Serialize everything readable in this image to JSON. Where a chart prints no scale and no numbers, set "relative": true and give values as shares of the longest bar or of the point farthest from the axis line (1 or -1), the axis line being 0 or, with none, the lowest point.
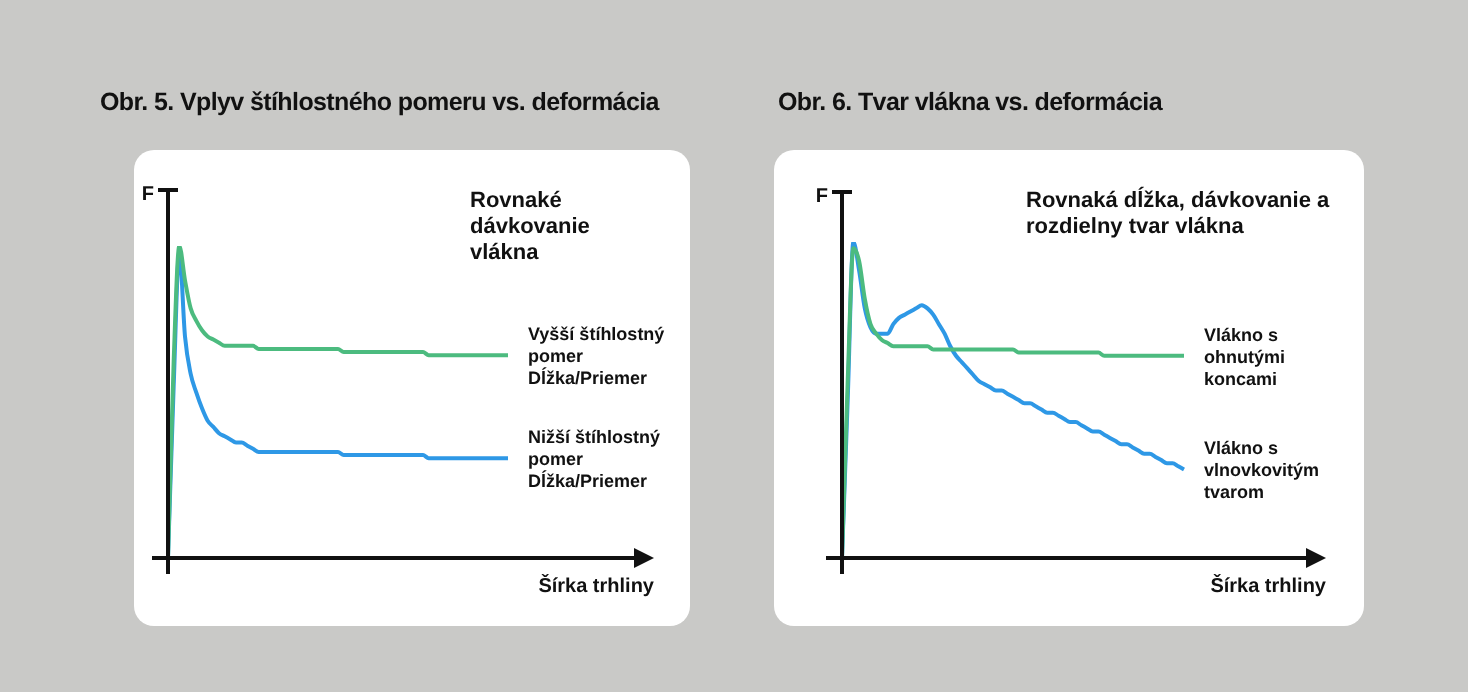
{
  "chart_data": [
    {
      "type": "line",
      "title": "Obr. 5. Vplyv štíhlostného pomeru vs. deformácia",
      "xlabel": "Šírka trhliny",
      "ylabel": "F",
      "relative": true,
      "legend": false,
      "marker": "none",
      "line_style": "solid",
      "annotations": [
        "Rovnaké dávkovanie vlákna"
      ],
      "categories": [
        null,
        null,
        null,
        null,
        null,
        null,
        null,
        null,
        null,
        null,
        null,
        null,
        null,
        null,
        null,
        null,
        null,
        null,
        null,
        null,
        null,
        null,
        null,
        null,
        null,
        null,
        null,
        null,
        null,
        null,
        null,
        null,
        null,
        null,
        null,
        null,
        null,
        null,
        null,
        null,
        null,
        null,
        null,
        null,
        null,
        null,
        null,
        null,
        null,
        null,
        null,
        null,
        null,
        null,
        null,
        null,
        null,
        null,
        null,
        null,
        null
      ],
      "series": [
        {
          "name": "Vyšší štíhlostný pomer Dĺžka/Priemer",
          "color": "#4cbb7f",
          "values": [
            0,
            0.63,
            1,
            0.89,
            0.8,
            0.76,
            0.73,
            0.71,
            0.7,
            0.69,
            0.68,
            0.68,
            0.68,
            0.68,
            0.68,
            0.68,
            0.67,
            0.67,
            0.67,
            0.67,
            0.67,
            0.67,
            0.67,
            0.67,
            0.67,
            0.67,
            0.67,
            0.67,
            0.67,
            0.67,
            0.67,
            0.66,
            0.66,
            0.66,
            0.66,
            0.66,
            0.66,
            0.66,
            0.66,
            0.66,
            0.66,
            0.66,
            0.66,
            0.66,
            0.66,
            0.66,
            0.65,
            0.65,
            0.65,
            0.65,
            0.65,
            0.65,
            0.65,
            0.65,
            0.65,
            0.65,
            0.65,
            0.65,
            0.65,
            0.65,
            0.65
          ]
        },
        {
          "name": "Nižší štíhlostný pomer Dĺžka/Priemer",
          "color": "#2e98e6",
          "values": [
            0,
            0.55,
            0.98,
            0.71,
            0.59,
            0.53,
            0.48,
            0.44,
            0.42,
            0.4,
            0.39,
            0.38,
            0.37,
            0.37,
            0.36,
            0.35,
            0.34,
            0.34,
            0.34,
            0.34,
            0.34,
            0.34,
            0.34,
            0.34,
            0.34,
            0.34,
            0.34,
            0.34,
            0.34,
            0.34,
            0.34,
            0.33,
            0.33,
            0.33,
            0.33,
            0.33,
            0.33,
            0.33,
            0.33,
            0.33,
            0.33,
            0.33,
            0.33,
            0.33,
            0.33,
            0.33,
            0.32,
            0.32,
            0.32,
            0.32,
            0.32,
            0.32,
            0.32,
            0.32,
            0.32,
            0.32,
            0.32,
            0.32,
            0.32,
            0.32,
            0.32
          ]
        }
      ]
    },
    {
      "type": "line",
      "title": "Obr. 6. Tvar vlákna vs. deformácia",
      "xlabel": "Šírka trhliny",
      "ylabel": "F",
      "relative": true,
      "legend": false,
      "marker": "none",
      "line_style": "solid",
      "annotations": [
        "Rovnaká dĺžka, dávkovanie a rozdielny tvar vlákna"
      ],
      "categories": [
        null,
        null,
        null,
        null,
        null,
        null,
        null,
        null,
        null,
        null,
        null,
        null,
        null,
        null,
        null,
        null,
        null,
        null,
        null,
        null,
        null,
        null,
        null,
        null,
        null,
        null,
        null,
        null,
        null,
        null,
        null,
        null,
        null,
        null,
        null,
        null,
        null,
        null,
        null,
        null,
        null,
        null,
        null,
        null,
        null,
        null,
        null,
        null,
        null,
        null,
        null,
        null,
        null,
        null,
        null,
        null,
        null,
        null,
        null,
        null,
        null
      ],
      "series": [
        {
          "name": "Vlákno s ohnutými koncami",
          "color": "#4cbb7f",
          "values": [
            0,
            0.56,
            0.98,
            0.94,
            0.82,
            0.74,
            0.71,
            0.69,
            0.68,
            0.67,
            0.67,
            0.67,
            0.67,
            0.67,
            0.67,
            0.67,
            0.66,
            0.66,
            0.66,
            0.66,
            0.66,
            0.66,
            0.66,
            0.66,
            0.66,
            0.66,
            0.66,
            0.66,
            0.66,
            0.66,
            0.66,
            0.65,
            0.65,
            0.65,
            0.65,
            0.65,
            0.65,
            0.65,
            0.65,
            0.65,
            0.65,
            0.65,
            0.65,
            0.65,
            0.65,
            0.65,
            0.64,
            0.64,
            0.64,
            0.64,
            0.64,
            0.64,
            0.64,
            0.64,
            0.64,
            0.64,
            0.64,
            0.64,
            0.64,
            0.64,
            0.64
          ]
        },
        {
          "name": "Vlákno s vlnovkovitým tvarom",
          "color": "#2e98e6",
          "values": [
            0,
            0.5,
            1,
            0.91,
            0.79,
            0.73,
            0.71,
            0.71,
            0.71,
            0.74,
            0.76,
            0.77,
            0.78,
            0.79,
            0.8,
            0.79,
            0.77,
            0.74,
            0.71,
            0.67,
            0.64,
            0.62,
            0.6,
            0.58,
            0.56,
            0.55,
            0.54,
            0.53,
            0.53,
            0.52,
            0.51,
            0.5,
            0.49,
            0.49,
            0.48,
            0.47,
            0.46,
            0.46,
            0.45,
            0.44,
            0.43,
            0.43,
            0.42,
            0.41,
            0.4,
            0.4,
            0.39,
            0.38,
            0.37,
            0.36,
            0.36,
            0.35,
            0.34,
            0.33,
            0.33,
            0.32,
            0.31,
            0.3,
            0.3,
            0.29,
            0.28
          ]
        }
      ]
    }
  ]
}
